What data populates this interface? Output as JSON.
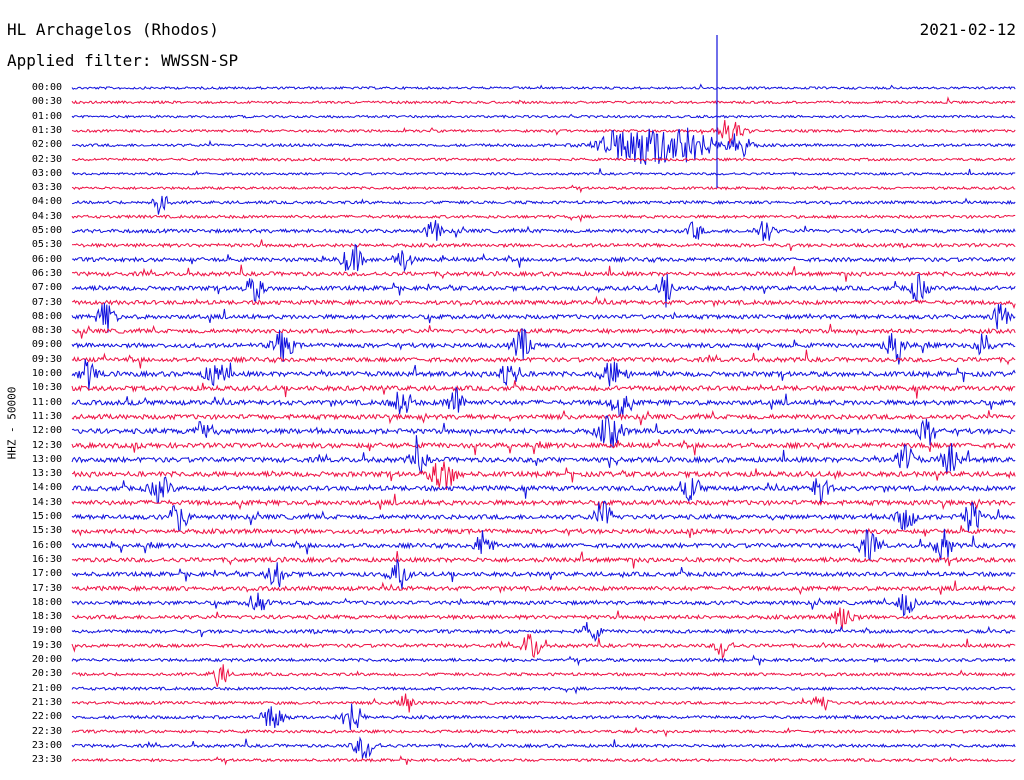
{
  "header": {
    "station": "HL Archagelos (Rhodos)",
    "filter": "Applied filter: WWSSN-SP",
    "date": "2021-02-12"
  },
  "colors": {
    "even": "#1010dd",
    "odd": "#ee1144"
  },
  "chart_data": {
    "type": "line",
    "title": "HL Archagelos (Rhodos)",
    "subtitle": "Applied filter: WWSSN-SP",
    "ylabel": "HHZ - 50000",
    "xlabel": "",
    "x_range_minutes": [
      0,
      30
    ],
    "tick_labels": [
      "00:00",
      "00:30",
      "01:00",
      "01:30",
      "02:00",
      "02:30",
      "03:00",
      "03:30",
      "04:00",
      "04:30",
      "05:00",
      "05:30",
      "06:00",
      "06:30",
      "07:00",
      "07:30",
      "08:00",
      "08:30",
      "09:00",
      "09:30",
      "10:00",
      "10:30",
      "11:00",
      "11:30",
      "12:00",
      "12:30",
      "13:00",
      "13:30",
      "14:00",
      "14:30",
      "15:00",
      "15:30",
      "16:00",
      "16:30",
      "17:00",
      "17:30",
      "18:00",
      "18:30",
      "19:00",
      "19:30",
      "20:00",
      "20:30",
      "21:00",
      "21:30",
      "22:00",
      "22:30",
      "23:00",
      "23:30"
    ],
    "row_activity": [
      0.3,
      0.35,
      0.3,
      0.4,
      0.5,
      0.4,
      0.3,
      0.4,
      0.6,
      0.6,
      1.0,
      0.9,
      1.2,
      1.2,
      1.3,
      1.3,
      1.3,
      1.3,
      1.4,
      1.4,
      1.6,
      1.6,
      1.6,
      1.6,
      1.7,
      1.7,
      1.7,
      1.7,
      1.6,
      1.6,
      1.5,
      1.5,
      1.4,
      1.4,
      1.3,
      1.3,
      1.1,
      1.1,
      0.9,
      0.9,
      0.7,
      0.6,
      0.6,
      0.6,
      0.7,
      0.6,
      0.7,
      0.5
    ],
    "series": [
      {
        "row": 4,
        "events": [
          [
            17.7,
            7,
            1.4
          ],
          [
            19.3,
            8,
            1.5
          ],
          [
            21.2,
            2.5,
            0.9
          ]
        ]
      },
      {
        "row": 3,
        "events": [
          [
            20.9,
            3,
            0.9
          ]
        ]
      },
      {
        "row": 8,
        "events": [
          [
            2.8,
            1.5,
            0.9
          ]
        ]
      },
      {
        "row": 10,
        "events": [
          [
            11.5,
            1.5,
            0.8
          ],
          [
            19.8,
            1.2,
            0.8
          ],
          [
            22.0,
            1.5,
            1.0
          ]
        ]
      },
      {
        "row": 12,
        "events": [
          [
            8.9,
            2.0,
            1.2
          ],
          [
            10.5,
            1.6,
            0.9
          ]
        ]
      },
      {
        "row": 14,
        "events": [
          [
            5.8,
            1.8,
            0.9
          ],
          [
            18.9,
            1.6,
            1.0
          ],
          [
            26.9,
            1.8,
            1.0
          ]
        ]
      },
      {
        "row": 16,
        "events": [
          [
            1.1,
            1.8,
            1.1
          ],
          [
            29.5,
            1.5,
            1.0
          ]
        ]
      },
      {
        "row": 18,
        "events": [
          [
            6.7,
            2.0,
            1.2
          ],
          [
            14.3,
            1.8,
            1.2
          ],
          [
            26.2,
            2.0,
            1.2
          ],
          [
            28.9,
            1.5,
            1.1
          ]
        ]
      },
      {
        "row": 20,
        "events": [
          [
            0.5,
            1.5,
            1.1
          ],
          [
            4.6,
            2.2,
            1.0
          ],
          [
            13.9,
            2.0,
            1.2
          ],
          [
            17.2,
            2.5,
            1.0
          ]
        ]
      },
      {
        "row": 22,
        "events": [
          [
            10.5,
            2.0,
            1.0
          ],
          [
            12.2,
            1.8,
            1.1
          ],
          [
            17.4,
            1.8,
            1.1
          ]
        ]
      },
      {
        "row": 24,
        "events": [
          [
            4.2,
            1.5,
            1.0
          ],
          [
            17.1,
            2.5,
            1.2
          ],
          [
            27.2,
            1.8,
            1.0
          ]
        ]
      },
      {
        "row": 26,
        "events": [
          [
            11.0,
            1.5,
            1.1
          ],
          [
            26.5,
            1.8,
            1.1
          ],
          [
            27.9,
            1.5,
            1.3
          ]
        ]
      },
      {
        "row": 27,
        "events": [
          [
            11.8,
            2.5,
            1.3
          ]
        ]
      },
      {
        "row": 28,
        "events": [
          [
            2.8,
            2.0,
            1.0
          ],
          [
            19.7,
            1.5,
            1.0
          ],
          [
            23.8,
            1.6,
            1.2
          ]
        ]
      },
      {
        "row": 30,
        "events": [
          [
            3.4,
            1.8,
            1.1
          ],
          [
            16.9,
            1.8,
            1.2
          ],
          [
            26.5,
            1.8,
            1.0
          ],
          [
            28.6,
            1.8,
            1.2
          ]
        ]
      },
      {
        "row": 32,
        "events": [
          [
            13.1,
            1.6,
            1.2
          ],
          [
            25.3,
            1.8,
            1.1
          ],
          [
            27.7,
            1.6,
            1.2
          ]
        ]
      },
      {
        "row": 34,
        "events": [
          [
            6.5,
            1.8,
            1.0
          ],
          [
            10.4,
            1.5,
            1.2
          ]
        ]
      },
      {
        "row": 36,
        "events": [
          [
            5.9,
            1.5,
            1.0
          ],
          [
            26.5,
            1.5,
            1.0
          ]
        ]
      },
      {
        "row": 37,
        "events": [
          [
            24.5,
            2.0,
            1.1
          ]
        ]
      },
      {
        "row": 38,
        "events": [
          [
            16.5,
            1.5,
            0.9
          ]
        ]
      },
      {
        "row": 39,
        "events": [
          [
            14.6,
            1.8,
            1.1
          ],
          [
            20.7,
            1.4,
            1.0
          ]
        ]
      },
      {
        "row": 41,
        "events": [
          [
            4.7,
            1.4,
            1.0
          ]
        ]
      },
      {
        "row": 43,
        "events": [
          [
            10.6,
            1.4,
            0.9
          ],
          [
            23.8,
            1.4,
            0.9
          ]
        ]
      },
      {
        "row": 44,
        "events": [
          [
            6.4,
            2.0,
            1.2
          ],
          [
            8.9,
            2.0,
            1.2
          ]
        ]
      },
      {
        "row": 46,
        "events": [
          [
            9.3,
            2.2,
            1.0
          ]
        ]
      }
    ]
  }
}
